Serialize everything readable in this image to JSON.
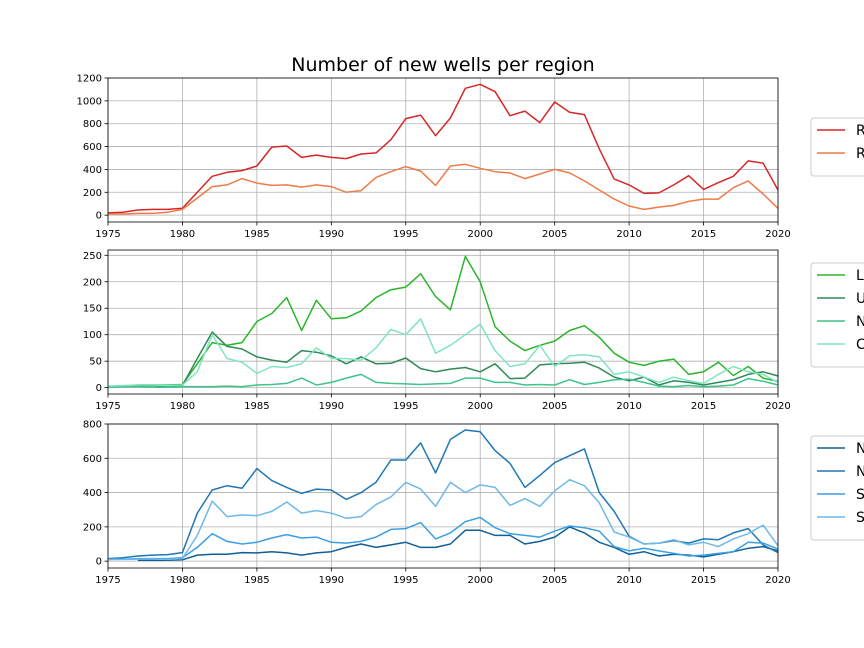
{
  "title": "Number of new wells per region",
  "chart_data": [
    {
      "type": "line",
      "title": "Number of new wells per region",
      "xlim": [
        1975,
        2020
      ],
      "ylim": [
        -60,
        1200
      ],
      "xticks": [
        1975,
        1980,
        1985,
        1990,
        1995,
        2000,
        2005,
        2010,
        2015,
        2020
      ],
      "yticks": [
        0,
        200,
        400,
        600,
        800,
        1000,
        1200
      ],
      "grid": true,
      "legend_position": "right",
      "series": [
        {
          "name": "R",
          "color": "#d62728",
          "x": [
            1975,
            1976,
            1977,
            1978,
            1979,
            1980,
            1981,
            1982,
            1983,
            1984,
            1985,
            1986,
            1987,
            1988,
            1989,
            1990,
            1991,
            1992,
            1993,
            1994,
            1995,
            1996,
            1997,
            1998,
            1999,
            2000,
            2001,
            2002,
            2003,
            2004,
            2005,
            2006,
            2007,
            2008,
            2009,
            2010,
            2011,
            2012,
            2013,
            2014,
            2015,
            2016,
            2017,
            2018,
            2019,
            2020
          ],
          "y": [
            20,
            25,
            45,
            50,
            50,
            60,
            200,
            340,
            375,
            390,
            430,
            595,
            605,
            505,
            525,
            505,
            495,
            535,
            545,
            660,
            845,
            875,
            695,
            850,
            1110,
            1145,
            1080,
            870,
            910,
            810,
            990,
            900,
            880,
            580,
            315,
            265,
            190,
            195,
            265,
            345,
            225,
            285,
            340,
            475,
            455,
            220
          ]
        },
        {
          "name": "R",
          "color": "#ef7b47",
          "x": [
            1975,
            1976,
            1977,
            1978,
            1979,
            1980,
            1981,
            1982,
            1983,
            1984,
            1985,
            1986,
            1987,
            1988,
            1989,
            1990,
            1991,
            1992,
            1993,
            1994,
            1995,
            1996,
            1997,
            1998,
            1999,
            2000,
            2001,
            2002,
            2003,
            2004,
            2005,
            2006,
            2007,
            2008,
            2009,
            2010,
            2011,
            2012,
            2013,
            2014,
            2015,
            2016,
            2017,
            2018,
            2019,
            2020
          ],
          "y": [
            10,
            10,
            15,
            15,
            25,
            50,
            150,
            250,
            265,
            320,
            280,
            260,
            265,
            245,
            265,
            250,
            200,
            215,
            330,
            380,
            425,
            385,
            260,
            430,
            445,
            410,
            380,
            370,
            320,
            360,
            400,
            370,
            300,
            220,
            140,
            80,
            50,
            70,
            85,
            120,
            140,
            140,
            240,
            300,
            185,
            60
          ]
        }
      ]
    },
    {
      "type": "line",
      "xlim": [
        1975,
        2020
      ],
      "ylim": [
        -12,
        260
      ],
      "xticks": [
        1975,
        1980,
        1985,
        1990,
        1995,
        2000,
        2005,
        2010,
        2015,
        2020
      ],
      "yticks": [
        0,
        50,
        100,
        150,
        200,
        250
      ],
      "grid": true,
      "legend_position": "right",
      "series": [
        {
          "name": "L",
          "color": "#2ab52a",
          "x": [
            1975,
            1976,
            1977,
            1978,
            1979,
            1980,
            1981,
            1982,
            1983,
            1984,
            1985,
            1986,
            1987,
            1988,
            1989,
            1990,
            1991,
            1992,
            1993,
            1994,
            1995,
            1996,
            1997,
            1998,
            1999,
            2000,
            2001,
            2002,
            2003,
            2004,
            2005,
            2006,
            2007,
            2008,
            2009,
            2010,
            2011,
            2012,
            2013,
            2014,
            2015,
            2016,
            2017,
            2018,
            2019,
            2020
          ],
          "y": [
            2,
            3,
            5,
            5,
            5,
            6,
            45,
            85,
            80,
            85,
            125,
            140,
            170,
            108,
            165,
            130,
            132,
            145,
            170,
            185,
            190,
            215,
            172,
            147,
            248,
            200,
            115,
            88,
            70,
            80,
            88,
            108,
            117,
            95,
            65,
            48,
            42,
            50,
            54,
            25,
            30,
            48,
            23,
            40,
            18,
            12
          ]
        },
        {
          "name": "U",
          "color": "#2e8b57",
          "x": [
            1975,
            1976,
            1977,
            1978,
            1979,
            1980,
            1981,
            1982,
            1983,
            1984,
            1985,
            1986,
            1987,
            1988,
            1989,
            1990,
            1991,
            1992,
            1993,
            1994,
            1995,
            1996,
            1997,
            1998,
            1999,
            2000,
            2001,
            2002,
            2003,
            2004,
            2005,
            2006,
            2007,
            2008,
            2009,
            2010,
            2011,
            2012,
            2013,
            2014,
            2015,
            2016,
            2017,
            2018,
            2019,
            2020
          ],
          "y": [
            2,
            3,
            4,
            4,
            3,
            4,
            55,
            105,
            78,
            73,
            58,
            52,
            48,
            70,
            67,
            60,
            45,
            58,
            45,
            46,
            56,
            36,
            30,
            35,
            38,
            30,
            45,
            17,
            18,
            43,
            45,
            46,
            48,
            37,
            20,
            13,
            20,
            5,
            13,
            10,
            5,
            10,
            15,
            25,
            30,
            22
          ]
        },
        {
          "name": "N",
          "color": "#3cc48c",
          "x": [
            1975,
            1976,
            1977,
            1978,
            1979,
            1980,
            1981,
            1982,
            1983,
            1984,
            1985,
            1986,
            1987,
            1988,
            1989,
            1990,
            1991,
            1992,
            1993,
            1994,
            1995,
            1996,
            1997,
            1998,
            1999,
            2000,
            2001,
            2002,
            2003,
            2004,
            2005,
            2006,
            2007,
            2008,
            2009,
            2010,
            2011,
            2012,
            2013,
            2014,
            2015,
            2016,
            2017,
            2018,
            2019,
            2020
          ],
          "y": [
            1,
            2,
            2,
            1,
            1,
            2,
            2,
            2,
            3,
            2,
            5,
            6,
            8,
            18,
            5,
            10,
            18,
            25,
            10,
            8,
            7,
            6,
            7,
            8,
            18,
            18,
            10,
            10,
            5,
            6,
            5,
            15,
            6,
            10,
            15,
            16,
            10,
            3,
            2,
            4,
            2,
            3,
            5,
            17,
            12,
            5
          ]
        },
        {
          "name": "C",
          "color": "#7fe5c2",
          "x": [
            1975,
            1976,
            1977,
            1978,
            1979,
            1980,
            1981,
            1982,
            1983,
            1984,
            1985,
            1986,
            1987,
            1988,
            1989,
            1990,
            1991,
            1992,
            1993,
            1994,
            1995,
            1996,
            1997,
            1998,
            1999,
            2000,
            2001,
            2002,
            2003,
            2004,
            2005,
            2006,
            2007,
            2008,
            2009,
            2010,
            2011,
            2012,
            2013,
            2014,
            2015,
            2016,
            2017,
            2018,
            2019,
            2020
          ],
          "y": [
            3,
            4,
            5,
            5,
            4,
            5,
            30,
            100,
            55,
            48,
            27,
            40,
            38,
            45,
            75,
            55,
            55,
            52,
            75,
            110,
            100,
            130,
            65,
            80,
            100,
            120,
            70,
            40,
            45,
            80,
            40,
            60,
            62,
            58,
            25,
            30,
            20,
            10,
            20,
            13,
            8,
            25,
            40,
            30,
            25,
            10
          ]
        }
      ]
    },
    {
      "type": "line",
      "xlim": [
        1975,
        2020
      ],
      "ylim": [
        -40,
        800
      ],
      "xticks": [
        1975,
        1980,
        1985,
        1990,
        1995,
        2000,
        2005,
        2010,
        2015,
        2020
      ],
      "yticks": [
        0,
        200,
        400,
        600,
        800
      ],
      "grid": true,
      "legend_position": "right",
      "series": [
        {
          "name": "N",
          "color": "#125f96",
          "x": [
            1977,
            1978,
            1979,
            1980,
            1981,
            1982,
            1983,
            1984,
            1985,
            1986,
            1987,
            1988,
            1989,
            1990,
            1991,
            1992,
            1993,
            1994,
            1995,
            1996,
            1997,
            1998,
            1999,
            2000,
            2001,
            2002,
            2003,
            2004,
            2005,
            2006,
            2007,
            2008,
            2009,
            2010,
            2011,
            2012,
            2013,
            2014,
            2015,
            2016,
            2017,
            2018,
            2019,
            2020
          ],
          "y": [
            5,
            5,
            5,
            8,
            35,
            40,
            40,
            50,
            48,
            55,
            48,
            35,
            48,
            55,
            80,
            100,
            80,
            95,
            110,
            80,
            80,
            100,
            180,
            180,
            150,
            150,
            100,
            115,
            140,
            200,
            165,
            110,
            80,
            40,
            55,
            30,
            40,
            35,
            25,
            40,
            55,
            75,
            85,
            60
          ]
        },
        {
          "name": "N",
          "color": "#1f77b4",
          "x": [
            1975,
            1976,
            1977,
            1978,
            1979,
            1980,
            1981,
            1982,
            1983,
            1984,
            1985,
            1986,
            1987,
            1988,
            1989,
            1990,
            1991,
            1992,
            1993,
            1994,
            1995,
            1996,
            1997,
            1998,
            1999,
            2000,
            2001,
            2002,
            2003,
            2004,
            2005,
            2006,
            2007,
            2008,
            2009,
            2010,
            2011,
            2012,
            2013,
            2014,
            2015,
            2016,
            2017,
            2018,
            2019,
            2020
          ],
          "y": [
            15,
            20,
            30,
            35,
            38,
            50,
            280,
            415,
            440,
            425,
            540,
            470,
            430,
            395,
            420,
            415,
            360,
            400,
            460,
            590,
            590,
            690,
            515,
            710,
            765,
            755,
            645,
            570,
            430,
            500,
            575,
            615,
            655,
            400,
            290,
            145,
            100,
            105,
            120,
            105,
            130,
            125,
            165,
            190,
            95,
            50
          ]
        },
        {
          "name": "S",
          "color": "#3a9fe6",
          "x": [
            1975,
            1976,
            1977,
            1978,
            1979,
            1980,
            1981,
            1982,
            1983,
            1984,
            1985,
            1986,
            1987,
            1988,
            1989,
            1990,
            1991,
            1992,
            1993,
            1994,
            1995,
            1996,
            1997,
            1998,
            1999,
            2000,
            2001,
            2002,
            2003,
            2004,
            2005,
            2006,
            2007,
            2008,
            2009,
            2010,
            2011,
            2012,
            2013,
            2014,
            2015,
            2016,
            2017,
            2018,
            2019,
            2020
          ],
          "y": [
            10,
            12,
            15,
            15,
            15,
            20,
            80,
            160,
            115,
            100,
            110,
            135,
            155,
            135,
            140,
            110,
            105,
            115,
            140,
            185,
            190,
            225,
            130,
            165,
            230,
            255,
            195,
            160,
            150,
            140,
            175,
            205,
            195,
            175,
            85,
            60,
            75,
            60,
            45,
            30,
            35,
            45,
            55,
            110,
            105,
            70
          ]
        },
        {
          "name": "S",
          "color": "#6fb9ea",
          "x": [
            1975,
            1976,
            1977,
            1978,
            1979,
            1980,
            1981,
            1982,
            1983,
            1984,
            1985,
            1986,
            1987,
            1988,
            1989,
            1990,
            1991,
            1992,
            1993,
            1994,
            1995,
            1996,
            1997,
            1998,
            1999,
            2000,
            2001,
            2002,
            2003,
            2004,
            2005,
            2006,
            2007,
            2008,
            2009,
            2010,
            2011,
            2012,
            2013,
            2014,
            2015,
            2016,
            2017,
            2018,
            2019,
            2020
          ],
          "y": [
            10,
            10,
            12,
            12,
            10,
            15,
            150,
            350,
            260,
            270,
            265,
            290,
            345,
            280,
            295,
            280,
            250,
            260,
            330,
            375,
            460,
            420,
            320,
            460,
            400,
            445,
            430,
            325,
            365,
            320,
            410,
            475,
            440,
            340,
            170,
            140,
            100,
            105,
            125,
            95,
            110,
            85,
            130,
            160,
            210,
            90
          ]
        }
      ]
    }
  ]
}
